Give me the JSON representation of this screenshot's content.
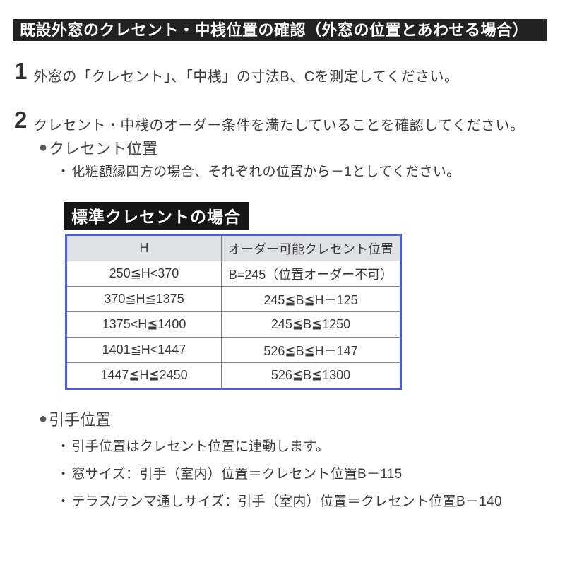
{
  "page": {
    "title": "既設外窓のクレセント・中桟位置の確認（外窓の位置とあわせる場合）"
  },
  "glyphs": {
    "bullet": "●",
    "sub_bullet": "・"
  },
  "steps": [
    {
      "number": "1",
      "text": "外窓の「クレセント」、「中桟」の寸法B、Cを測定してください。"
    },
    {
      "number": "2",
      "text": "クレセント・中桟のオーダー条件を満たしていることを確認してください。"
    }
  ],
  "crescent_section": {
    "heading": "クレセント位置",
    "note": "化粧額縁四方の場合、それぞれの位置から－1としてください。",
    "table_label": "標準クレセントの場合",
    "table": {
      "headers": [
        "H",
        "オーダー可能クレセント位置"
      ],
      "rows": [
        [
          "250≦H<370",
          "B=245（位置オーダー不可）"
        ],
        [
          "370≦H≦1375",
          "245≦B≦H－125"
        ],
        [
          "1375<H≦1400",
          "245≦B≦1250"
        ],
        [
          "1401≦H<1447",
          "526≦B≦H－147"
        ],
        [
          "1447≦H≦2450",
          "526≦B≦1300"
        ]
      ]
    }
  },
  "handle_section": {
    "heading": "引手位置",
    "notes": [
      "引手位置はクレセント位置に連動します。",
      "窓サイズ：引手（室内）位置＝クレセント位置B－115",
      "テラス/ランマ通しサイズ：引手（室内）位置＝クレセント位置B－140"
    ]
  },
  "colors": {
    "title_bar_bg": "#222222",
    "title_bar_text": "#ffffff",
    "table_label_bg": "#161616",
    "body_text": "#3b3b3b",
    "table_border": "#4b61c6",
    "table_header_bg": "#e0e1e5",
    "table_inner_border": "#7f7f7f"
  }
}
